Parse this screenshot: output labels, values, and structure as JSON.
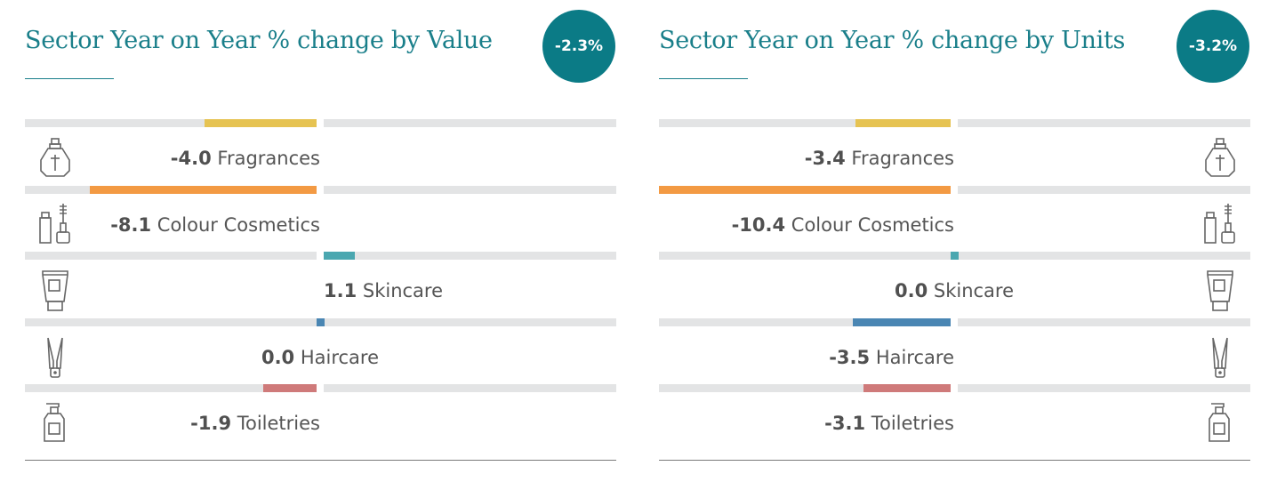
{
  "panels": [
    {
      "title": "Sector Year on Year % change by Value",
      "total": "-2.3%",
      "icon_side": "left"
    },
    {
      "title": "Sector Year on Year % change by Units",
      "total": "-3.2%",
      "icon_side": "right"
    }
  ],
  "chart_data": [
    {
      "type": "bar",
      "title": "Sector Year on Year % change by Value",
      "categories": [
        "Fragrances",
        "Colour Cosmetics",
        "Skincare",
        "Haircare",
        "Toiletries"
      ],
      "values": [
        -4.0,
        -8.1,
        1.1,
        0.0,
        -1.9
      ],
      "value_labels": [
        "-4.0",
        "-8.1",
        "1.1",
        "0.0",
        "-1.9"
      ],
      "colors": [
        "#e6c352",
        "#f39a43",
        "#4aa7b0",
        "#4a86b3",
        "#cf7a7a"
      ],
      "icons": [
        "perfume-bottle-icon",
        "mascara-cosmetics-icon",
        "cream-tube-icon",
        "hair-straightener-icon",
        "pump-bottle-icon"
      ],
      "xlim": [
        -10.4,
        10.4
      ]
    },
    {
      "type": "bar",
      "title": "Sector Year on Year % change by Units",
      "categories": [
        "Fragrances",
        "Colour Cosmetics",
        "Skincare",
        "Haircare",
        "Toiletries"
      ],
      "values": [
        -3.4,
        -10.4,
        0.0,
        -3.5,
        -3.1
      ],
      "value_labels": [
        "-3.4",
        "-10.4",
        "0.0",
        "-3.5",
        "-3.1"
      ],
      "colors": [
        "#e6c352",
        "#f39a43",
        "#4aa7b0",
        "#4a86b3",
        "#cf7a7a"
      ],
      "icons": [
        "perfume-bottle-icon",
        "mascara-cosmetics-icon",
        "cream-tube-icon",
        "hair-straightener-icon",
        "pump-bottle-icon"
      ],
      "xlim": [
        -10.4,
        10.4
      ]
    }
  ]
}
